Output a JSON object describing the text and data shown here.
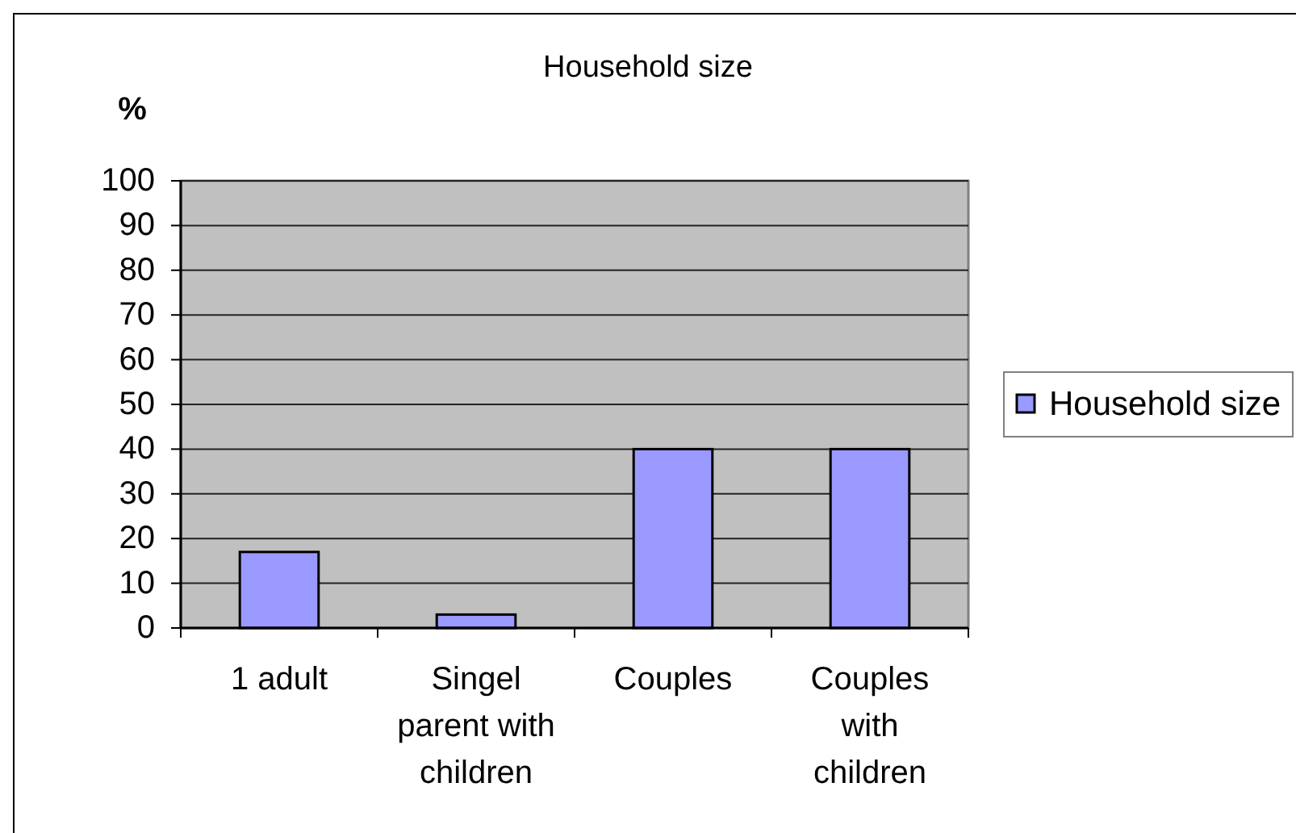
{
  "chart_data": {
    "type": "bar",
    "title": "Household size",
    "ylabel": "%",
    "categories": [
      "1 adult",
      "Singel parent with children",
      "Couples",
      "Couples with children"
    ],
    "series": [
      {
        "name": "Household size",
        "color": "#9999ff",
        "values": [
          17,
          3,
          40,
          40
        ]
      }
    ],
    "ylim": [
      0,
      100
    ],
    "yticks": [
      0,
      10,
      20,
      30,
      40,
      50,
      60,
      70,
      80,
      90,
      100
    ],
    "grid": "y",
    "legend": "right"
  }
}
